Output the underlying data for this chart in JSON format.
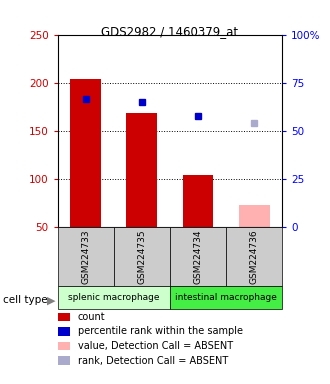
{
  "title": "GDS2982 / 1460379_at",
  "samples": [
    "GSM224733",
    "GSM224735",
    "GSM224734",
    "GSM224736"
  ],
  "red_bar_values": [
    204,
    168,
    104,
    50
  ],
  "blue_square_values": [
    183,
    180,
    165,
    158
  ],
  "pink_bar_values": [
    null,
    null,
    null,
    72
  ],
  "light_blue_values": [
    null,
    null,
    null,
    158
  ],
  "bar_bottom": 50,
  "absent_samples": [
    3
  ],
  "ylim_left": [
    50,
    250
  ],
  "ylim_right": [
    0,
    100
  ],
  "yticks_left": [
    50,
    100,
    150,
    200,
    250
  ],
  "yticks_right": [
    0,
    25,
    50,
    75,
    100
  ],
  "ytick_labels_right": [
    "0",
    "25",
    "50",
    "75",
    "100%"
  ],
  "red_color": "#cc0000",
  "pink_color": "#ffb0b0",
  "blue_color": "#0000cc",
  "light_blue_color": "#aaaacc",
  "group1_label": "splenic macrophage",
  "group2_label": "intestinal macrophage",
  "group1_bg": "#ccffcc",
  "group2_bg": "#44ee44",
  "sample_bg": "#cccccc",
  "bar_width": 0.55,
  "hline_values": [
    100,
    150,
    200
  ],
  "legend_items": [
    {
      "color": "#cc0000",
      "label": "count"
    },
    {
      "color": "#0000cc",
      "label": "percentile rank within the sample"
    },
    {
      "color": "#ffb0b0",
      "label": "value, Detection Call = ABSENT"
    },
    {
      "color": "#aaaacc",
      "label": "rank, Detection Call = ABSENT"
    }
  ]
}
